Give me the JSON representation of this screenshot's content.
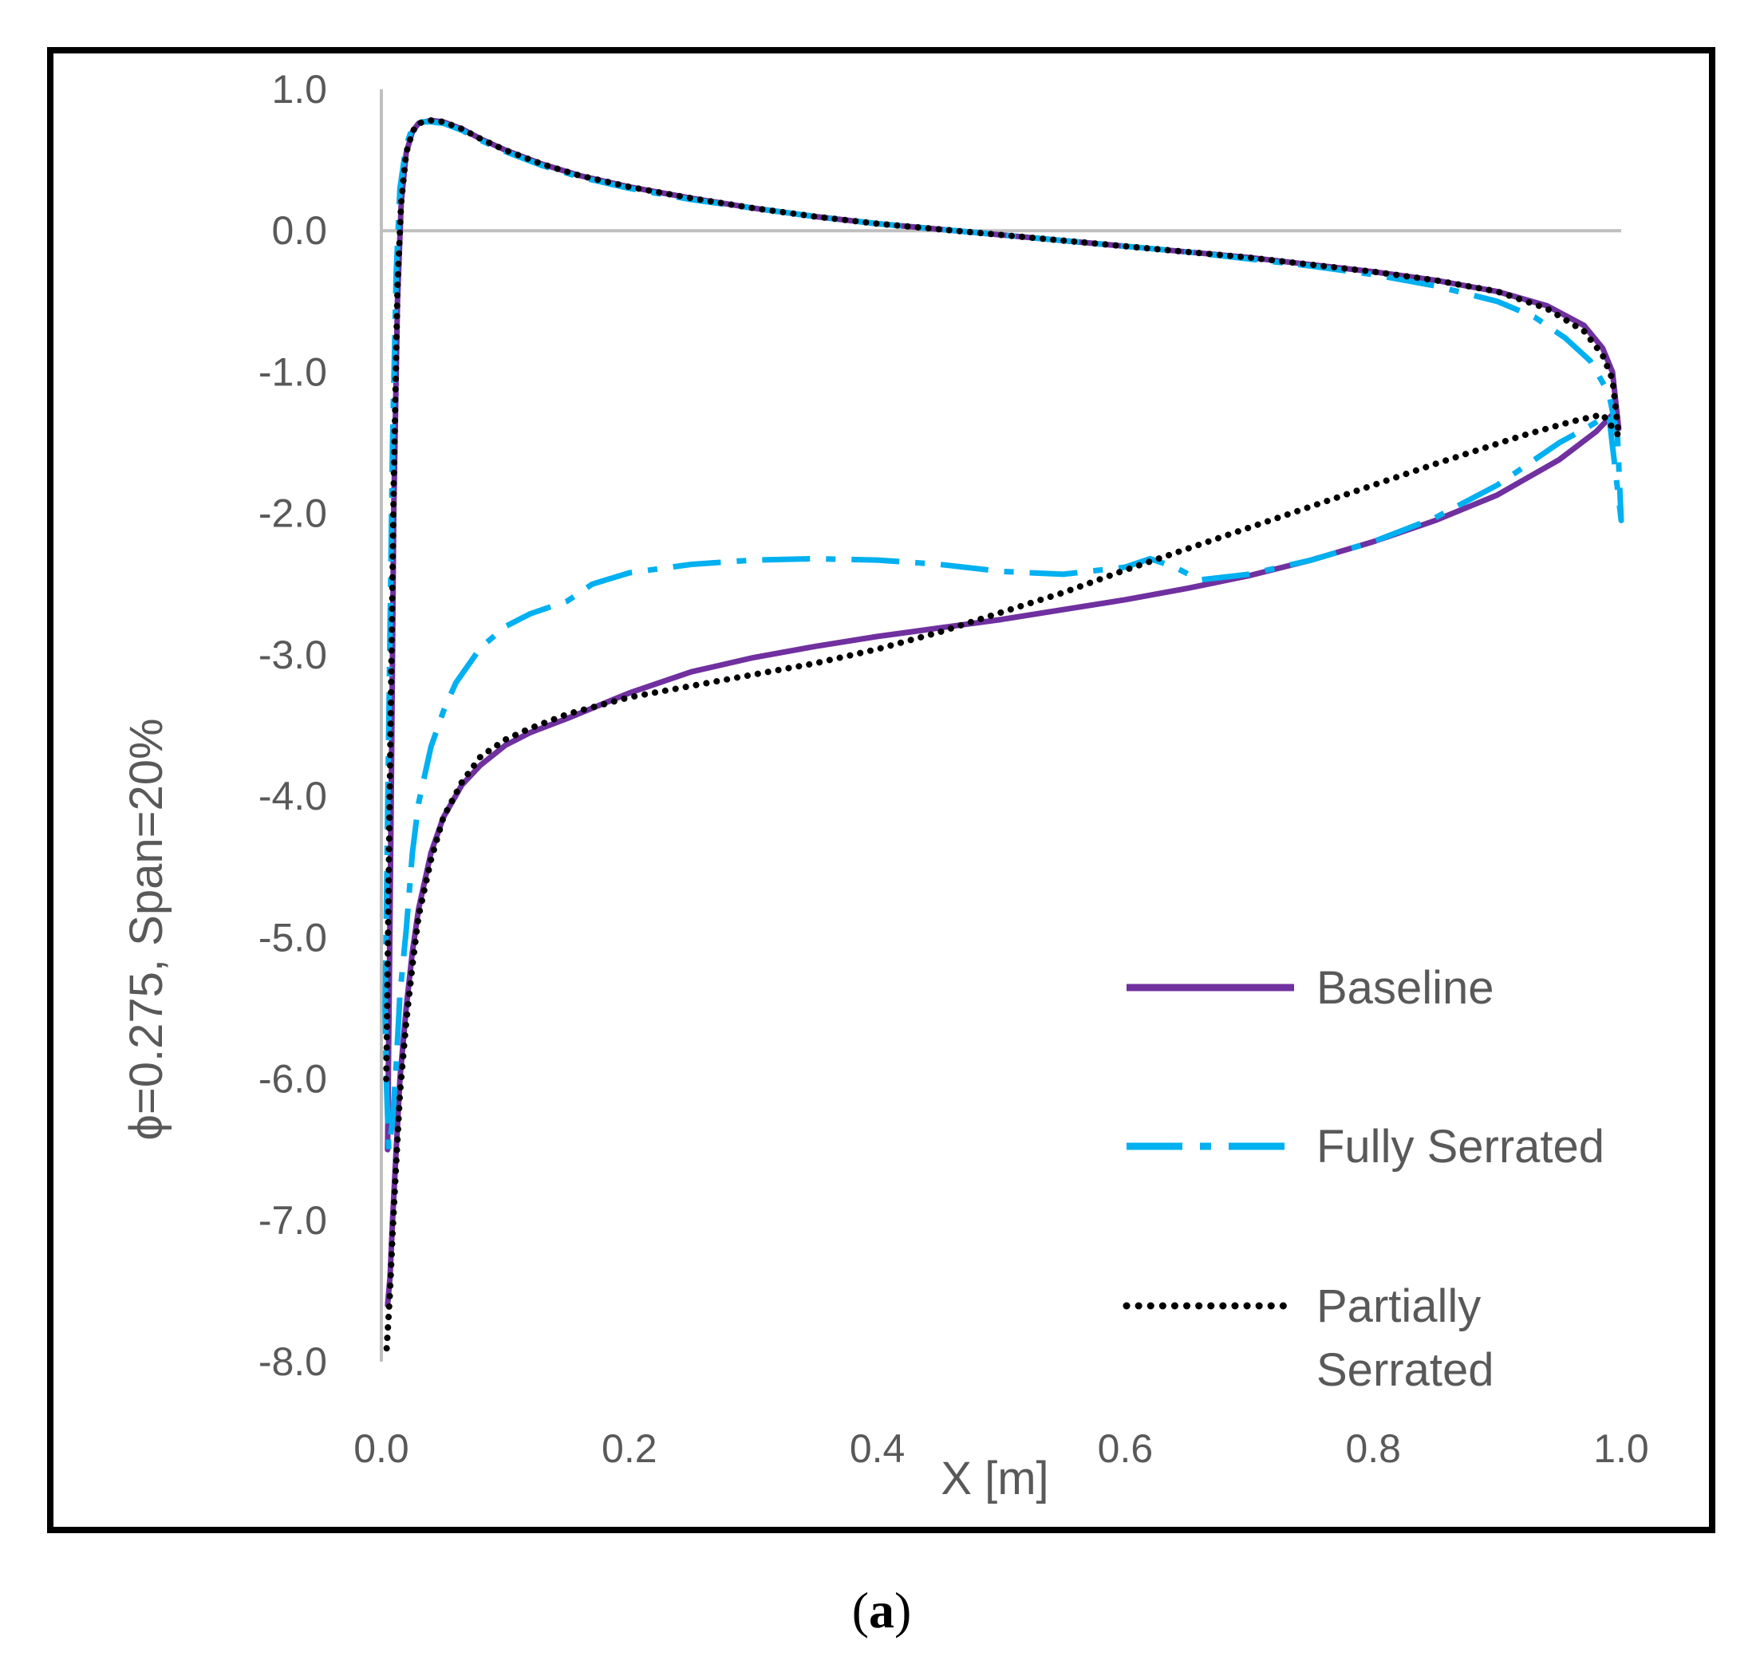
{
  "chart_data": {
    "type": "line",
    "title": "",
    "xlabel": "X [m]",
    "ylabel": "ϕ=0.275, Span=20%",
    "xlim": [
      0.0,
      1.0
    ],
    "ylim": [
      -8.0,
      1.0
    ],
    "x_ticks": [
      "0.0",
      "0.2",
      "0.4",
      "0.6",
      "0.8",
      "1.0"
    ],
    "y_ticks": [
      "1.0",
      "0.0",
      "-1.0",
      "-2.0",
      "-3.0",
      "-4.0",
      "-5.0",
      "-6.0",
      "-7.0",
      "-8.0"
    ],
    "grid": false,
    "legend_position": "bottom-right",
    "colors": {
      "baseline": "#7030A0",
      "fully": "#00B0F0",
      "partial": "#000000",
      "axis": "#BFBFBF",
      "frame": "#000000"
    },
    "caption": {
      "open": "(",
      "letter": "a",
      "close": ")"
    },
    "series": [
      {
        "name": "Baseline",
        "style": "solid",
        "x": [
          0.005,
          0.008,
          0.01,
          0.013,
          0.016,
          0.02,
          0.025,
          0.03,
          0.04,
          0.05,
          0.065,
          0.08,
          0.1,
          0.13,
          0.16,
          0.2,
          0.25,
          0.3,
          0.35,
          0.4,
          0.45,
          0.5,
          0.55,
          0.6,
          0.65,
          0.7,
          0.75,
          0.8,
          0.85,
          0.9,
          0.94,
          0.97,
          0.985,
          0.993,
          0.998,
          0.993,
          0.98,
          0.95,
          0.9,
          0.85,
          0.8,
          0.75,
          0.7,
          0.65,
          0.6,
          0.55,
          0.5,
          0.45,
          0.4,
          0.35,
          0.3,
          0.25,
          0.2,
          0.15,
          0.12,
          0.1,
          0.08,
          0.065,
          0.05,
          0.04,
          0.03,
          0.025,
          0.02,
          0.015,
          0.012,
          0.009,
          0.007,
          0.005
        ],
        "y": [
          -6.5,
          -4.0,
          -2.0,
          -0.5,
          0.2,
          0.55,
          0.7,
          0.76,
          0.78,
          0.77,
          0.72,
          0.65,
          0.57,
          0.47,
          0.39,
          0.31,
          0.23,
          0.16,
          0.1,
          0.05,
          0.01,
          -0.03,
          -0.07,
          -0.11,
          -0.15,
          -0.19,
          -0.24,
          -0.29,
          -0.35,
          -0.43,
          -0.53,
          -0.67,
          -0.83,
          -1.0,
          -1.4,
          -1.3,
          -1.42,
          -1.62,
          -1.87,
          -2.05,
          -2.2,
          -2.33,
          -2.44,
          -2.53,
          -2.61,
          -2.68,
          -2.75,
          -2.81,
          -2.87,
          -2.94,
          -3.02,
          -3.12,
          -3.27,
          -3.45,
          -3.55,
          -3.64,
          -3.78,
          -3.92,
          -4.15,
          -4.4,
          -4.8,
          -5.1,
          -5.5,
          -6.0,
          -6.5,
          -7.0,
          -7.4,
          -7.6
        ]
      },
      {
        "name": "Fully Serrated",
        "style": "dash-dot",
        "x": [
          0.003,
          0.006,
          0.009,
          0.012,
          0.015,
          0.02,
          0.025,
          0.03,
          0.04,
          0.05,
          0.065,
          0.08,
          0.1,
          0.13,
          0.16,
          0.2,
          0.25,
          0.3,
          0.35,
          0.4,
          0.45,
          0.5,
          0.55,
          0.6,
          0.65,
          0.7,
          0.75,
          0.8,
          0.85,
          0.9,
          0.93,
          0.955,
          0.975,
          0.99,
          0.997,
          1.0,
          0.99,
          0.975,
          0.95,
          0.92,
          0.9,
          0.85,
          0.8,
          0.75,
          0.7,
          0.66,
          0.64,
          0.62,
          0.6,
          0.55,
          0.5,
          0.45,
          0.4,
          0.35,
          0.3,
          0.25,
          0.2,
          0.17,
          0.15,
          0.12,
          0.1,
          0.08,
          0.06,
          0.05,
          0.04,
          0.03,
          0.025,
          0.02,
          0.015,
          0.012,
          0.009,
          0.006,
          0.004,
          0.003
        ],
        "y": [
          -5.5,
          -3.5,
          -1.5,
          -0.3,
          0.3,
          0.6,
          0.73,
          0.77,
          0.77,
          0.76,
          0.71,
          0.64,
          0.56,
          0.46,
          0.38,
          0.3,
          0.22,
          0.16,
          0.1,
          0.05,
          0.01,
          -0.03,
          -0.07,
          -0.11,
          -0.15,
          -0.2,
          -0.25,
          -0.31,
          -0.39,
          -0.5,
          -0.61,
          -0.76,
          -0.92,
          -1.15,
          -1.45,
          -2.05,
          -1.3,
          -1.38,
          -1.5,
          -1.68,
          -1.8,
          -2.03,
          -2.2,
          -2.33,
          -2.43,
          -2.47,
          -2.38,
          -2.32,
          -2.38,
          -2.43,
          -2.41,
          -2.36,
          -2.33,
          -2.32,
          -2.33,
          -2.36,
          -2.42,
          -2.5,
          -2.62,
          -2.71,
          -2.8,
          -2.95,
          -3.2,
          -3.4,
          -3.65,
          -4.05,
          -4.4,
          -4.95,
          -5.4,
          -5.9,
          -6.3,
          -6.5,
          -6.0,
          -5.5
        ]
      },
      {
        "name": "Partially Serrated",
        "style": "dotted",
        "x": [
          0.004,
          0.007,
          0.01,
          0.013,
          0.016,
          0.02,
          0.025,
          0.03,
          0.04,
          0.05,
          0.065,
          0.08,
          0.1,
          0.13,
          0.16,
          0.2,
          0.25,
          0.3,
          0.35,
          0.4,
          0.45,
          0.5,
          0.55,
          0.6,
          0.65,
          0.7,
          0.75,
          0.8,
          0.85,
          0.9,
          0.94,
          0.97,
          0.985,
          0.993,
          0.998,
          0.985,
          0.96,
          0.92,
          0.85,
          0.8,
          0.75,
          0.7,
          0.65,
          0.6,
          0.55,
          0.5,
          0.45,
          0.4,
          0.35,
          0.3,
          0.25,
          0.2,
          0.15,
          0.12,
          0.1,
          0.08,
          0.065,
          0.05,
          0.04,
          0.03,
          0.025,
          0.02,
          0.015,
          0.012,
          0.009,
          0.007,
          0.005,
          0.004
        ],
        "y": [
          -6.0,
          -3.8,
          -1.8,
          -0.4,
          0.2,
          0.55,
          0.7,
          0.76,
          0.78,
          0.77,
          0.72,
          0.65,
          0.57,
          0.47,
          0.39,
          0.31,
          0.23,
          0.16,
          0.1,
          0.05,
          0.01,
          -0.03,
          -0.07,
          -0.11,
          -0.15,
          -0.19,
          -0.24,
          -0.29,
          -0.35,
          -0.43,
          -0.55,
          -0.71,
          -0.88,
          -1.05,
          -1.45,
          -1.3,
          -1.35,
          -1.45,
          -1.65,
          -1.8,
          -1.95,
          -2.1,
          -2.25,
          -2.4,
          -2.56,
          -2.7,
          -2.84,
          -2.96,
          -3.06,
          -3.14,
          -3.22,
          -3.3,
          -3.42,
          -3.52,
          -3.6,
          -3.72,
          -3.9,
          -4.15,
          -4.45,
          -4.85,
          -5.2,
          -5.6,
          -6.1,
          -6.6,
          -7.1,
          -7.5,
          -7.8,
          -7.95
        ]
      }
    ]
  }
}
